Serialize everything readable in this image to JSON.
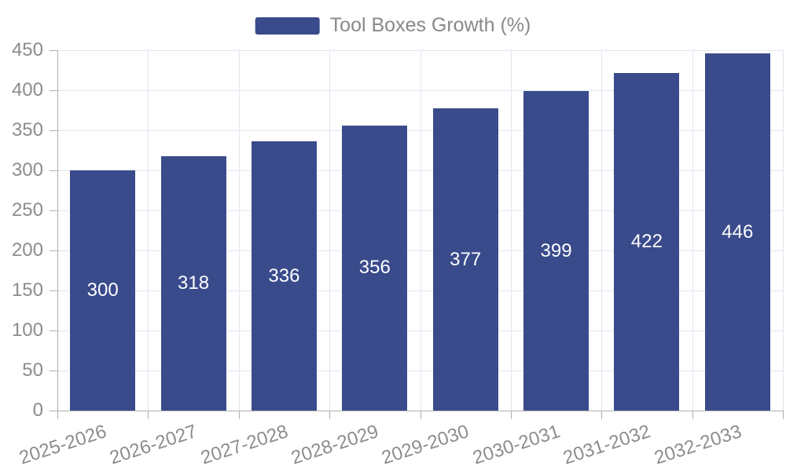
{
  "chart_data": {
    "type": "bar",
    "title": "",
    "legend": {
      "label": "Tool Boxes Growth (%)",
      "position": "top-center"
    },
    "categories": [
      "2025-2026",
      "2026-2027",
      "2027-2028",
      "2028-2029",
      "2029-2030",
      "2030-2031",
      "2031-2032",
      "2032-2033"
    ],
    "series": [
      {
        "name": "Tool Boxes Growth (%)",
        "values": [
          300,
          318,
          336,
          356,
          377,
          399,
          422,
          446
        ]
      }
    ],
    "xlabel": "",
    "ylabel": "",
    "ylim": [
      0,
      450
    ],
    "ytick_interval": 50,
    "ytick_labels": [
      "0",
      "50",
      "100",
      "150",
      "200",
      "250",
      "300",
      "350",
      "400",
      "450"
    ],
    "grid": true,
    "x_label_rotation_deg": 18,
    "bar_value_labels_visible": true,
    "colors": {
      "bar": "#3A4B8C",
      "bar_value_label": "#FFFFFF",
      "grid_line": "#E0E6F1",
      "axis_line": "#AFAFAF",
      "axis_label": "#8C8C8C",
      "legend_text": "#898989",
      "background": "#FFFFFF"
    }
  }
}
